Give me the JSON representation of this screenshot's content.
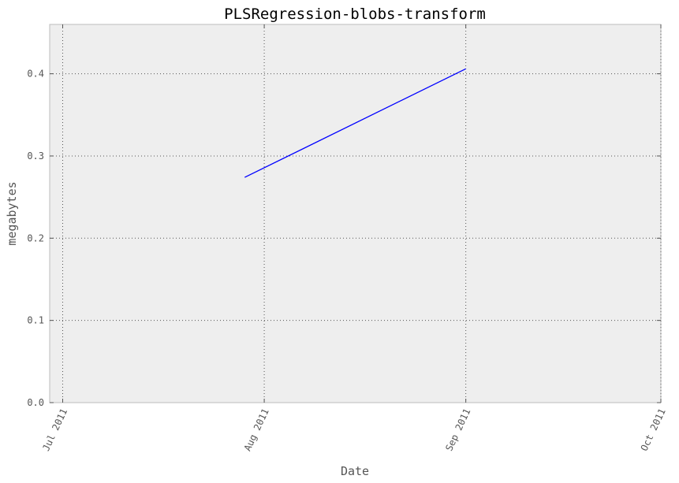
{
  "chart_data": {
    "type": "line",
    "title": "PLSRegression-blobs-transform",
    "xlabel": "Date",
    "ylabel": "megabytes",
    "x_scale": "date",
    "xlim": [
      "2011-06-29",
      "2011-10-01"
    ],
    "ylim": [
      0,
      0.46
    ],
    "x_ticks": [
      {
        "date": "2011-07-01",
        "label": "Jul 2011"
      },
      {
        "date": "2011-08-01",
        "label": "Aug 2011"
      },
      {
        "date": "2011-09-01",
        "label": "Sep 2011"
      },
      {
        "date": "2011-10-01",
        "label": "Oct 2011"
      }
    ],
    "y_ticks": [
      {
        "value": 0.0,
        "label": "0.0"
      },
      {
        "value": 0.1,
        "label": "0.1"
      },
      {
        "value": 0.2,
        "label": "0.2"
      },
      {
        "value": 0.3,
        "label": "0.3"
      },
      {
        "value": 0.4,
        "label": "0.4"
      }
    ],
    "grid": true,
    "series": [
      {
        "color": "#0000ff",
        "points": [
          {
            "x": "2011-07-29",
            "y": 0.274
          },
          {
            "x": "2011-09-01",
            "y": 0.406
          }
        ]
      }
    ]
  }
}
